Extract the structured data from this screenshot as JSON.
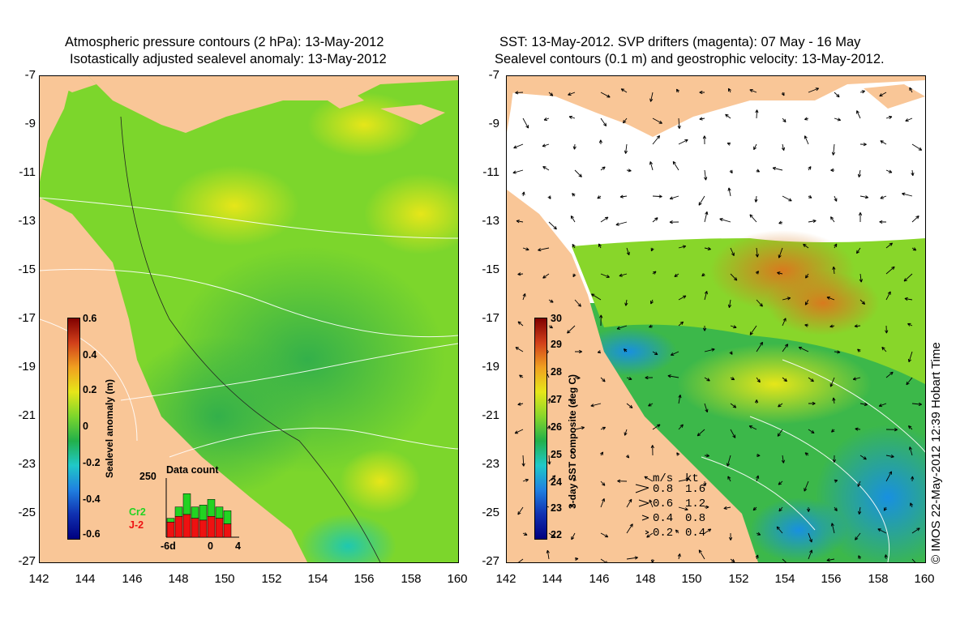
{
  "left_panel": {
    "title_line1": "Atmospheric pressure contours (2 hPa): 13-May-2012",
    "title_line2": "Isotastically adjusted sealevel anomaly: 13-May-2012",
    "colorbar": {
      "label": "Sealevel anomaly (m)",
      "ticks": [
        "0.6",
        "0.4",
        "0.2",
        "0",
        "-0.2",
        "-0.4",
        "-0.6"
      ],
      "range": [
        -0.6,
        0.6
      ]
    },
    "data_count": {
      "title": "Data count",
      "y_max_label": "250",
      "x_labels": [
        "-6d",
        "0",
        "4"
      ],
      "legend": [
        {
          "name": "Cr2",
          "color": "#22d322"
        },
        {
          "name": "J-2",
          "color": "#ee1111"
        }
      ],
      "bars_j2": [
        40,
        55,
        60,
        50,
        45,
        55,
        50,
        35
      ],
      "bars_cr2": [
        50,
        80,
        115,
        80,
        85,
        100,
        80,
        70
      ]
    }
  },
  "right_panel": {
    "title_line1": "SST: 13-May-2012. SVP drifters (magenta): 07 May - 16 May",
    "title_line2": "Sealevel contours (0.1 m) and geostrophic velocity: 13-May-2012.",
    "colorbar": {
      "label": "3-day SST composite (deg C)",
      "ticks": [
        "30",
        "29",
        "28",
        "27",
        "26",
        "25",
        "24",
        "23",
        "22"
      ],
      "range": [
        22,
        30
      ]
    },
    "velocity_key": {
      "header_ms": "m/s",
      "header_kt": "kt",
      "rows": [
        {
          "ms": "0.8",
          "kt": "1.6"
        },
        {
          "ms": "0.6",
          "kt": "1.2"
        },
        {
          "ms": "0.4",
          "kt": "0.8"
        },
        {
          "ms": "0.2",
          "kt": "0.4"
        }
      ]
    }
  },
  "axes": {
    "y_ticks": [
      "-7",
      "-9",
      "-11",
      "-13",
      "-15",
      "-17",
      "-19",
      "-21",
      "-23",
      "-25",
      "-27"
    ],
    "x_ticks": [
      "142",
      "144",
      "146",
      "148",
      "150",
      "152",
      "154",
      "156",
      "158",
      "160"
    ]
  },
  "credit": "© IMOS 22-May-2012 12:39 Hobart Time",
  "colors": {
    "land": "#f9c697",
    "ocean_green": "#4fc23a",
    "ocean_yellow": "#e6e619",
    "ocean_cyan": "#22c2b8",
    "sst_orange": "#e8901e",
    "cloud": "#ffffff"
  }
}
